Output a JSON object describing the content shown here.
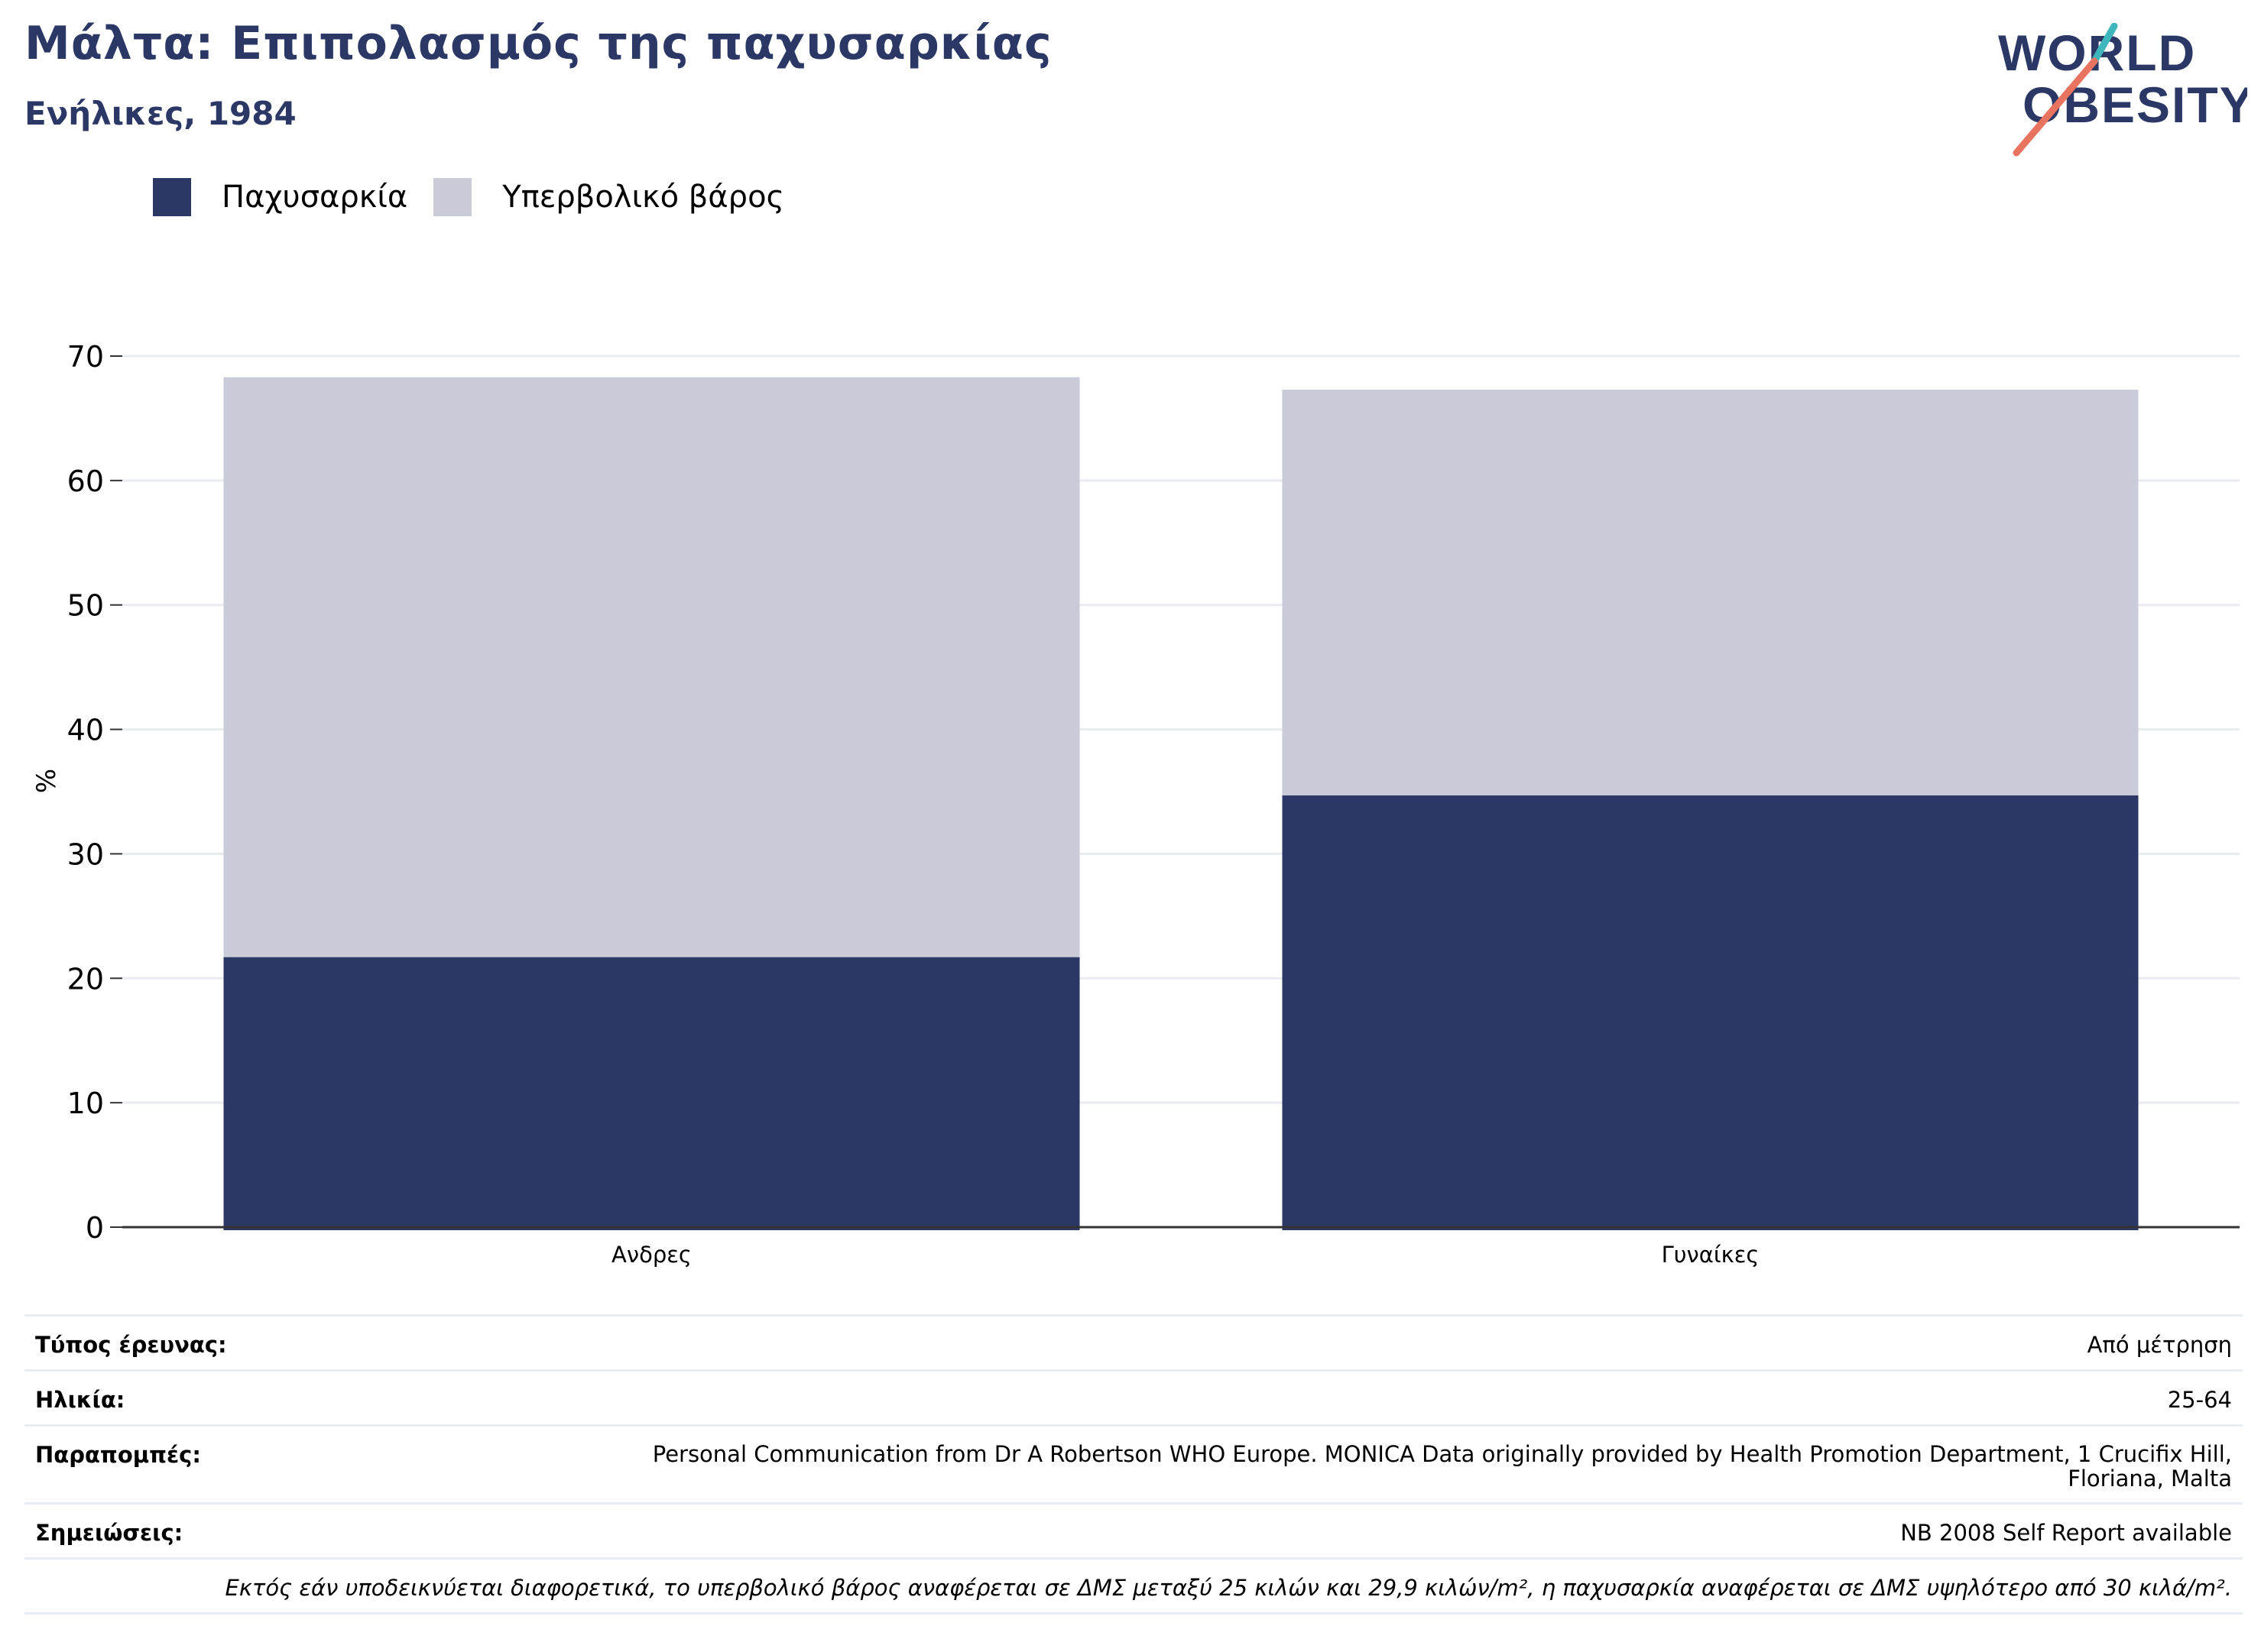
{
  "header": {
    "title": "Μάλτα: Επιπολασμός της παχυσαρκίας",
    "subtitle": "Ενήλικες, 1984"
  },
  "logo": {
    "line1": "WORLD",
    "line2": "OBESITY"
  },
  "colors": {
    "obesity": "#2b3765",
    "overweight": "#cacbd8",
    "text_dark": "#2b3765",
    "logo_teal": "#3db7bb",
    "logo_coral": "#e8735f",
    "gridline": "#e8ebef"
  },
  "chart_data": {
    "type": "bar",
    "stacked": true,
    "categories": [
      "Ανδρες",
      "Γυναίκες"
    ],
    "series": [
      {
        "name": "Παχυσαρκία",
        "values": [
          21.7,
          34.7
        ]
      },
      {
        "name": "Υπερβολικό βάρος",
        "values": [
          46.6,
          32.6
        ]
      }
    ],
    "ylabel": "%",
    "ylim": [
      0,
      70
    ],
    "yticks": [
      0,
      10,
      20,
      30,
      40,
      50,
      60,
      70
    ],
    "grid": true,
    "legend": "top-left"
  },
  "meta": [
    {
      "key": "Τύπος έρευνας:",
      "value": "Από μέτρηση"
    },
    {
      "key": "Ηλικία:",
      "value": "25-64"
    },
    {
      "key": "Παραπομπές:",
      "value": "Personal Communication from Dr A Robertson WHO Europe. MONICA Data originally provided by Health Promotion Department, 1 Crucifix Hill, Floriana, Malta"
    },
    {
      "key": "Σημειώσεις:",
      "value": "NB 2008 Self Report available"
    }
  ],
  "footnote": "Εκτός εάν υποδεικνύεται διαφορετικά, το υπερβολικό βάρος αναφέρεται σε ΔΜΣ μεταξύ 25 κιλών και 29,9 κιλών/m², η παχυσαρκία αναφέρεται σε ΔΜΣ υψηλότερο από 30 κιλά/m²."
}
